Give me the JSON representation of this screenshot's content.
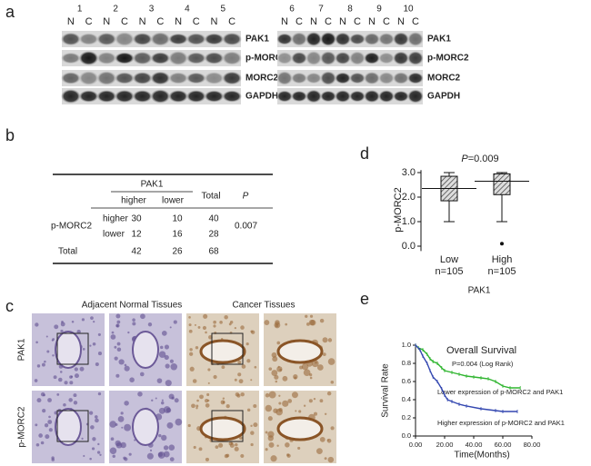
{
  "panel_labels": [
    "a",
    "b",
    "c",
    "d",
    "e"
  ],
  "blots": [
    {
      "pairs": [
        {
          "lane": "1",
          "n": "N",
          "c": "C",
          "color": "#d81e1e"
        },
        {
          "lane": "2",
          "n": "N",
          "c": "C",
          "color": "#222222"
        },
        {
          "lane": "3",
          "n": "N",
          "c": "C",
          "color": "#222222"
        },
        {
          "lane": "4",
          "n": "N",
          "c": "C",
          "color": "#d81e1e"
        },
        {
          "lane": "5",
          "n": "N",
          "c": "C",
          "color": "#d81e1e"
        }
      ],
      "proteins": [
        "PAK1",
        "p-MORC2",
        "MORC2",
        "GAPDH"
      ]
    },
    {
      "pairs": [
        {
          "lane": "6",
          "n": "N",
          "c": "C",
          "color": "#d81e1e"
        },
        {
          "lane": "7",
          "n": "N",
          "c": "C",
          "color": "#222222"
        },
        {
          "lane": "8",
          "n": "N",
          "c": "C",
          "color": "#222222"
        },
        {
          "lane": "9",
          "n": "N",
          "c": "C",
          "color": "#d81e1e"
        },
        {
          "lane": "10",
          "n": "N",
          "c": "C",
          "color": "#d81e1e"
        }
      ],
      "proteins": [
        "PAK1",
        "p-MORC2",
        "MORC2",
        "GAPDH"
      ]
    }
  ],
  "table": {
    "group": "PAK1",
    "cols": [
      "higher",
      "lower"
    ],
    "total": "Total",
    "p": "P",
    "row_group": "p-MORC2",
    "rows": [
      {
        "label": "higher",
        "cells": [
          30,
          10,
          40
        ]
      },
      {
        "label": "lower",
        "cells": [
          12,
          16,
          28
        ]
      }
    ],
    "p_value": 0.007,
    "total_row": {
      "label": "Total",
      "cells": [
        42,
        26,
        68
      ]
    }
  },
  "histology": {
    "columns": [
      "Adjacent Normal Tissues",
      "Cancer Tissues"
    ],
    "rows": [
      "PAK1",
      "p-MORC2"
    ]
  },
  "chart_data": [
    {
      "type": "box",
      "title_italic": "P",
      "title": "=0.009",
      "y_label": "p-MORC2",
      "x_label": "PAK1",
      "categories": [
        "Low",
        "High"
      ],
      "sublabels": [
        "n=105",
        "n=105"
      ],
      "boxes": [
        {
          "whisker_low": 1.0,
          "q1": 1.85,
          "q3": 2.85,
          "whisker_high": 3.0,
          "line": 2.35,
          "outliers": []
        },
        {
          "whisker_low": 1.0,
          "q1": 2.1,
          "q3": 2.95,
          "whisker_high": 3.0,
          "line": 2.65,
          "outliers": [
            0.1
          ]
        }
      ],
      "ylim": [
        -0.2,
        3.1
      ],
      "yticks": [
        {
          "value": 0,
          "label": "0.0"
        },
        {
          "value": 1,
          "label": "1.0"
        },
        {
          "value": 2,
          "label": "2.0"
        },
        {
          "value": 3,
          "label": "3.0"
        }
      ]
    },
    {
      "type": "line",
      "title": "Overall Survival",
      "subtitle": "P=0.004 (Log Rank)",
      "y_label": "Survival Rate",
      "x_label": "Time(Months)",
      "series": [
        {
          "name": "Lower expression of p-MORC2 and PAK1",
          "color": "#2fb52f",
          "x": [
            0,
            2,
            5,
            8,
            10,
            12,
            15,
            18,
            20,
            25,
            30,
            35,
            40,
            45,
            50,
            55,
            60,
            65,
            72
          ],
          "values": [
            1,
            0.97,
            0.95,
            0.9,
            0.85,
            0.82,
            0.8,
            0.75,
            0.72,
            0.7,
            0.68,
            0.66,
            0.65,
            0.64,
            0.63,
            0.6,
            0.55,
            0.53,
            0.53
          ]
        },
        {
          "name": "Higher expression of p-MORC2 and PAK1",
          "color": "#3347b0",
          "x": [
            0,
            3,
            5,
            8,
            10,
            12,
            15,
            18,
            20,
            22,
            25,
            30,
            35,
            45,
            55,
            60,
            70
          ],
          "values": [
            1,
            0.95,
            0.88,
            0.8,
            0.72,
            0.65,
            0.6,
            0.52,
            0.45,
            0.4,
            0.38,
            0.35,
            0.33,
            0.3,
            0.28,
            0.27,
            0.27
          ]
        }
      ],
      "xlim": [
        0,
        80
      ],
      "xticks": [
        {
          "value": 0,
          "label": "0.00"
        },
        {
          "value": 20,
          "label": "20.00"
        },
        {
          "value": 40,
          "label": "40.00"
        },
        {
          "value": 60,
          "label": "60.00"
        },
        {
          "value": 80,
          "label": "80.00"
        }
      ],
      "ylim": [
        0,
        1
      ],
      "yticks": [
        {
          "value": 0,
          "label": "0.0"
        },
        0.2,
        0.4,
        0.6,
        0.8,
        {
          "value": 1,
          "label": "1.0"
        }
      ]
    }
  ]
}
